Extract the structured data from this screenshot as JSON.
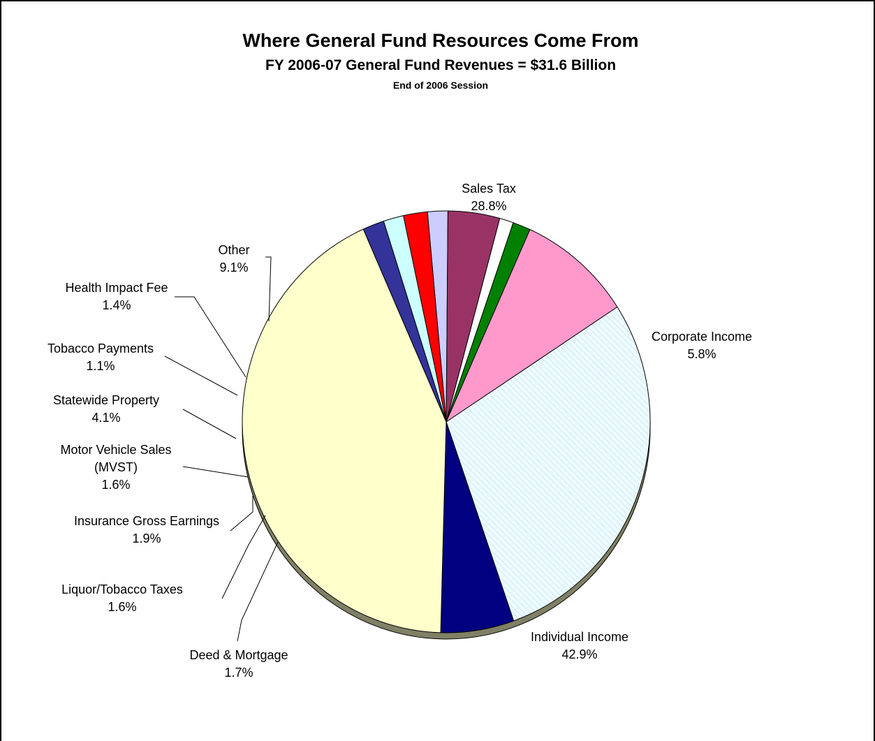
{
  "chart_data": {
    "type": "pie",
    "title": "Where General Fund Resources Come From",
    "subtitle": "FY 2006-07 General Fund Revenues = $31.6 Billion",
    "note": "End of 2006 Session",
    "slices": [
      {
        "label": "Sales Tax",
        "value": 28.8,
        "value_label": "28.8%",
        "color": "#eefaff",
        "pattern": "diagonal-hatch"
      },
      {
        "label": "Corporate Income",
        "value": 5.8,
        "value_label": "5.8%",
        "color": "#000080"
      },
      {
        "label": "Individual Income",
        "value": 42.9,
        "value_label": "42.9%",
        "color": "#ffffcc"
      },
      {
        "label": "Deed & Mortgage",
        "value": 1.7,
        "value_label": "1.7%",
        "color": "#333399"
      },
      {
        "label": "Liquor/Tobacco Taxes",
        "value": 1.6,
        "value_label": "1.6%",
        "color": "#ccffff"
      },
      {
        "label": "Insurance Gross Earnings",
        "value": 1.9,
        "value_label": "1.9%",
        "color": "#ff0000"
      },
      {
        "label": "Motor Vehicle Sales (MVST)",
        "value": 1.6,
        "value_label": "1.6%",
        "color": "#ccccff"
      },
      {
        "label": "Statewide Property",
        "value": 4.1,
        "value_label": "4.1%",
        "color": "#993366"
      },
      {
        "label": "Tobacco Payments",
        "value": 1.1,
        "value_label": "1.1%",
        "color": "#ffffff"
      },
      {
        "label": "Health Impact Fee",
        "value": 1.4,
        "value_label": "1.4%",
        "color": "#008000"
      },
      {
        "label": "Other",
        "value": 9.1,
        "value_label": "9.1%",
        "color": "#ff99cc"
      }
    ],
    "shadow_color": "#808066"
  }
}
